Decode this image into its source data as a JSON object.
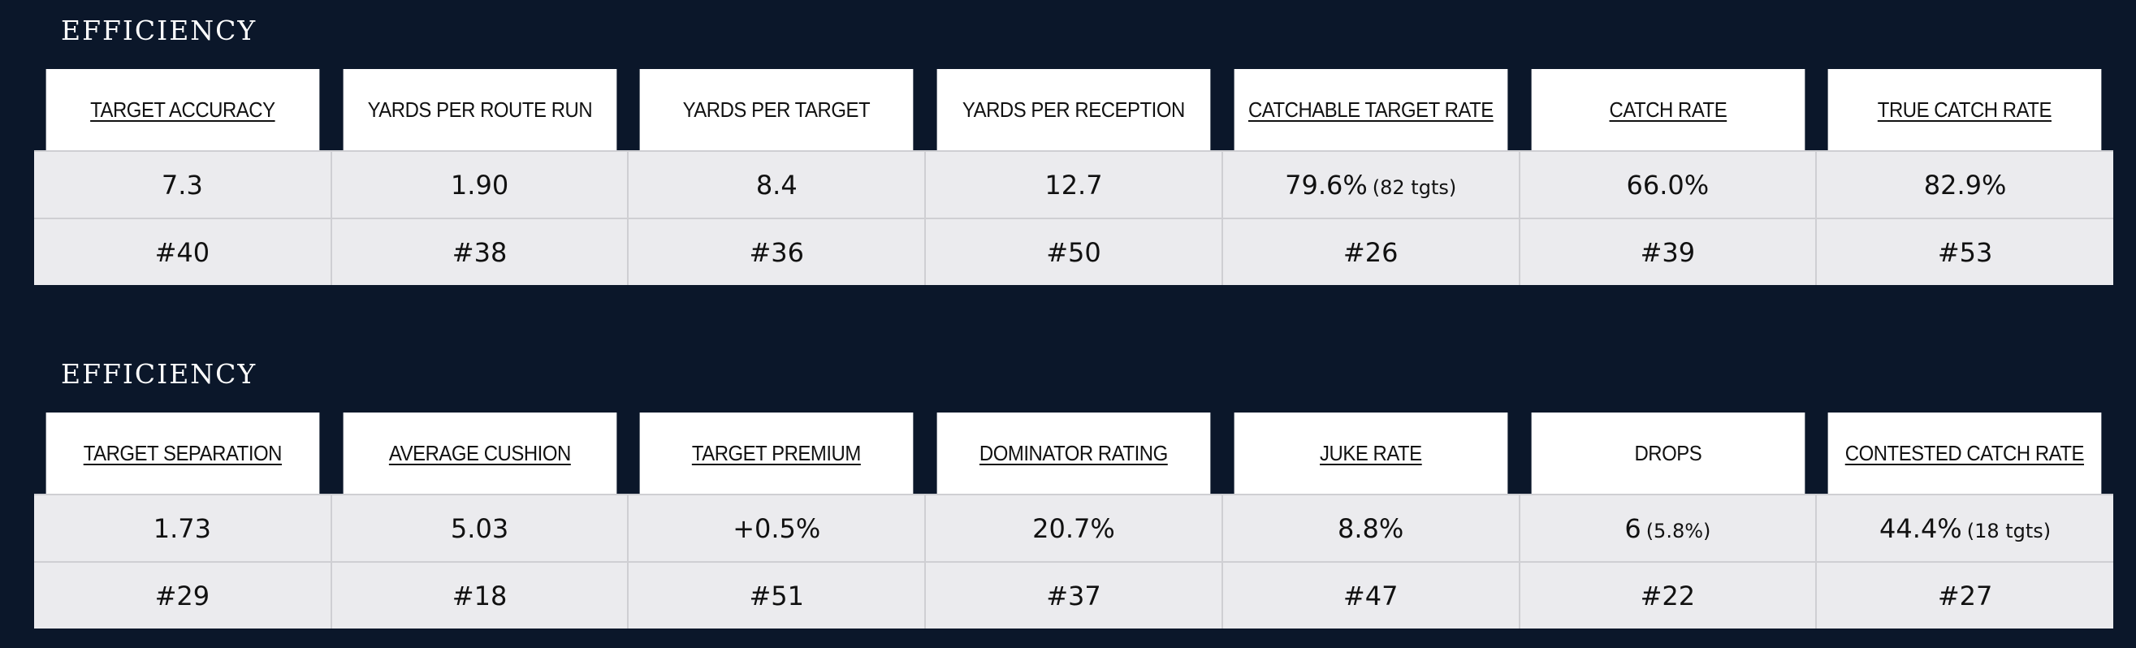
{
  "sections": [
    {
      "title": "EFFICIENCY",
      "headers": [
        {
          "label": "TARGET ACCURACY",
          "link": true
        },
        {
          "label": "YARDS PER ROUTE RUN",
          "link": false
        },
        {
          "label": "YARDS PER TARGET",
          "link": false
        },
        {
          "label": "YARDS PER RECEPTION",
          "link": false
        },
        {
          "label": "CATCHABLE TARGET RATE",
          "link": true
        },
        {
          "label": "CATCH RATE",
          "link": true
        },
        {
          "label": "TRUE CATCH RATE",
          "link": true
        }
      ],
      "values": [
        {
          "main": "7.3",
          "sub": ""
        },
        {
          "main": "1.90",
          "sub": ""
        },
        {
          "main": "8.4",
          "sub": ""
        },
        {
          "main": "12.7",
          "sub": ""
        },
        {
          "main": "79.6%",
          "sub": "(82 tgts)"
        },
        {
          "main": "66.0%",
          "sub": ""
        },
        {
          "main": "82.9%",
          "sub": ""
        }
      ],
      "ranks": [
        "#40",
        "#38",
        "#36",
        "#50",
        "#26",
        "#39",
        "#53"
      ]
    },
    {
      "title": "EFFICIENCY",
      "headers": [
        {
          "label": "TARGET SEPARATION",
          "link": true
        },
        {
          "label": "AVERAGE CUSHION",
          "link": true
        },
        {
          "label": "TARGET PREMIUM",
          "link": true
        },
        {
          "label": "DOMINATOR RATING",
          "link": true
        },
        {
          "label": "JUKE RATE",
          "link": true
        },
        {
          "label": "DROPS",
          "link": false
        },
        {
          "label": "CONTESTED CATCH RATE",
          "link": true
        }
      ],
      "values": [
        {
          "main": "1.73",
          "sub": ""
        },
        {
          "main": "5.03",
          "sub": ""
        },
        {
          "main": "+0.5%",
          "sub": ""
        },
        {
          "main": "20.7%",
          "sub": ""
        },
        {
          "main": "8.8%",
          "sub": ""
        },
        {
          "main": "6",
          "sub": "(5.8%)"
        },
        {
          "main": "44.4%",
          "sub": "(18 tgts)"
        }
      ],
      "ranks": [
        "#29",
        "#18",
        "#51",
        "#37",
        "#47",
        "#22",
        "#27"
      ]
    }
  ]
}
